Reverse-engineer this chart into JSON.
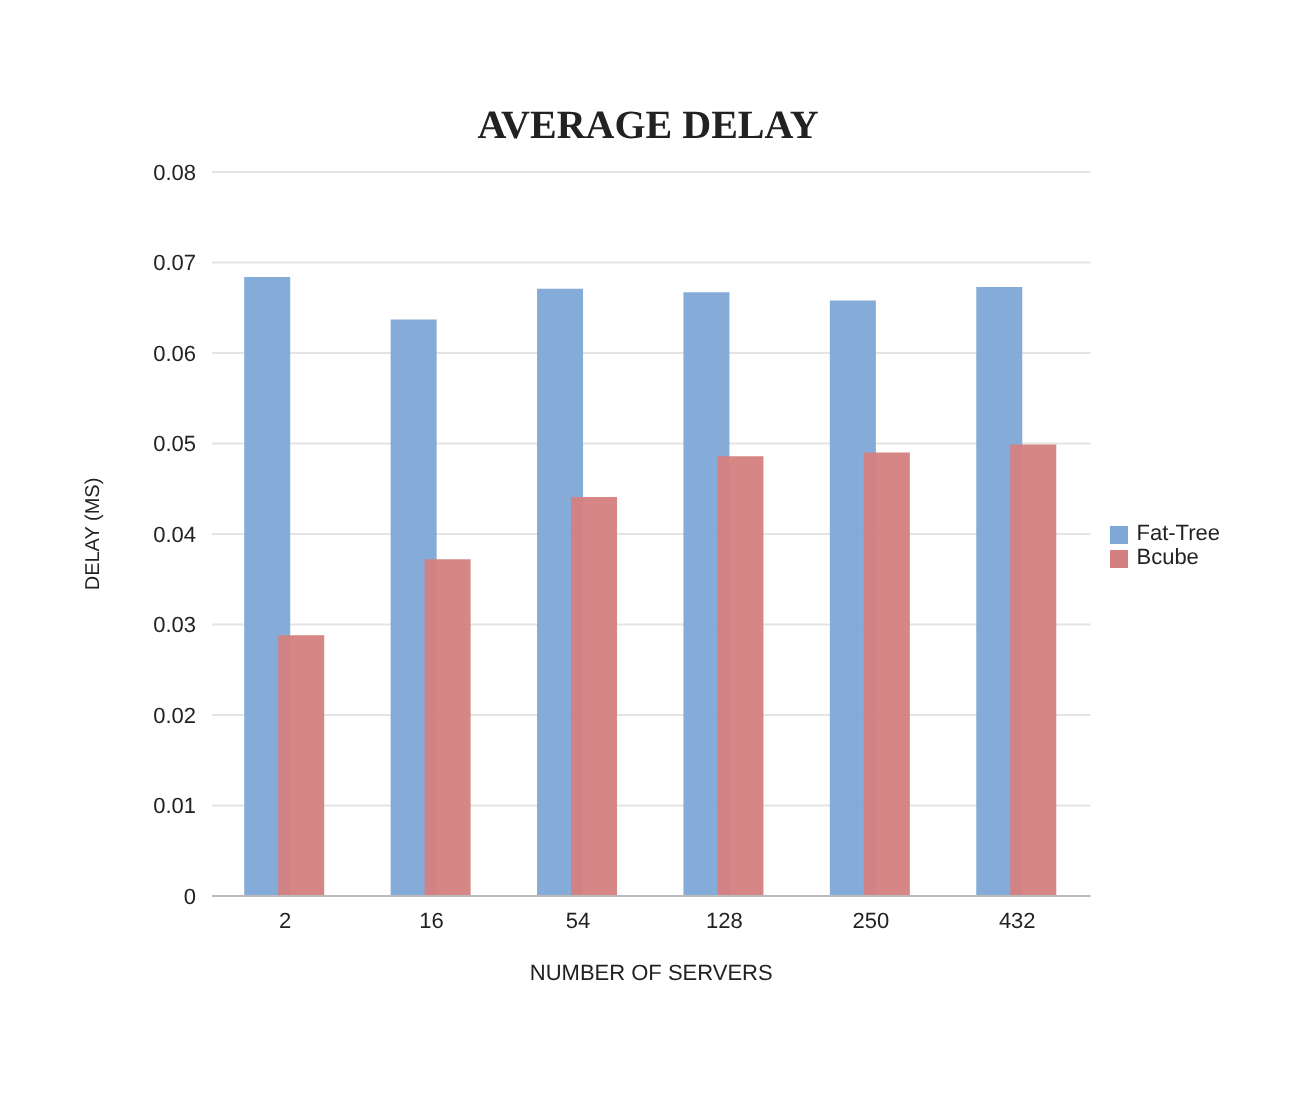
{
  "chart_data": {
    "type": "bar",
    "title": "AVERAGE DELAY",
    "xlabel": "NUMBER OF SERVERS",
    "ylabel": "DELAY (MS)",
    "categories": [
      "2",
      "16",
      "54",
      "128",
      "250",
      "432"
    ],
    "series": [
      {
        "name": "Fat-Tree",
        "color": "#7ea6d6",
        "values": [
          0.0684,
          0.0637,
          0.0671,
          0.0667,
          0.0658,
          0.0673
        ]
      },
      {
        "name": "Bcube",
        "color": "#d58080",
        "values": [
          0.0288,
          0.0372,
          0.0441,
          0.0486,
          0.049,
          0.0499
        ]
      }
    ],
    "ylim": [
      0,
      0.08
    ],
    "yticks": [
      0,
      0.01,
      0.02,
      0.03,
      0.04,
      0.05,
      0.06,
      0.07,
      0.08
    ],
    "grid": "y",
    "legend": "right"
  }
}
